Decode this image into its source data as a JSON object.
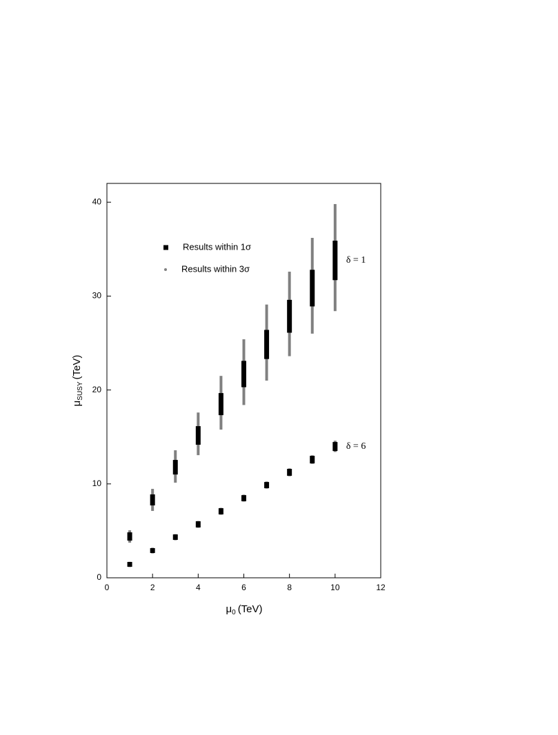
{
  "chart_data": {
    "type": "range",
    "x": [
      1,
      2,
      3,
      4,
      5,
      6,
      7,
      8,
      9,
      10
    ],
    "groups": [
      "δ = 1",
      "δ = 6"
    ],
    "series": [
      {
        "name": "Results within 3σ",
        "color": "#808080",
        "ranges": [
          [
            [
              3.74,
              5.06
            ],
            [
              7.12,
              9.47
            ],
            [
              10.13,
              13.58
            ],
            [
              13.06,
              17.6
            ],
            [
              15.78,
              21.5
            ],
            [
              18.4,
              25.4
            ],
            [
              21.0,
              29.1
            ],
            [
              23.6,
              32.6
            ],
            [
              26.0,
              36.2
            ],
            [
              28.4,
              39.8
            ]
          ],
          [
            [
              1.15,
              1.7
            ],
            [
              2.6,
              3.2
            ],
            [
              4.0,
              4.65
            ],
            [
              5.33,
              6.05
            ],
            [
              6.72,
              7.45
            ],
            [
              8.12,
              8.85
            ],
            [
              9.5,
              10.25
            ],
            [
              10.82,
              11.65
            ],
            [
              12.14,
              13.04
            ],
            [
              13.4,
              14.6
            ]
          ]
        ]
      },
      {
        "name": "Results within 1σ",
        "color": "#000000",
        "ranges": [
          [
            [
              3.96,
              4.84
            ],
            [
              7.71,
              8.88
            ],
            [
              11.0,
              12.55
            ],
            [
              14.17,
              16.15
            ],
            [
              17.32,
              19.67
            ],
            [
              20.3,
              23.1
            ],
            [
              23.3,
              26.4
            ],
            [
              26.1,
              29.6
            ],
            [
              28.9,
              32.8
            ],
            [
              31.7,
              35.9
            ]
          ],
          [
            [
              1.17,
              1.69
            ],
            [
              2.64,
              3.16
            ],
            [
              4.04,
              4.62
            ],
            [
              5.36,
              6.02
            ],
            [
              6.75,
              7.41
            ],
            [
              8.15,
              8.8
            ],
            [
              9.54,
              10.2
            ],
            [
              10.86,
              11.6
            ],
            [
              12.18,
              12.99
            ],
            [
              13.5,
              14.46
            ]
          ]
        ]
      }
    ],
    "xlabel": {
      "symbol": "μ",
      "sub": "0",
      "unit": "(TeV)"
    },
    "ylabel": {
      "symbol": "μ",
      "sub": "SUSY",
      "unit": "(TeV)"
    },
    "xlim": [
      0,
      12
    ],
    "xticks": [
      0,
      2,
      4,
      6,
      8,
      10,
      12
    ],
    "ylim": [
      0,
      42
    ],
    "yticks": [
      0,
      10,
      20,
      30,
      40
    ]
  }
}
